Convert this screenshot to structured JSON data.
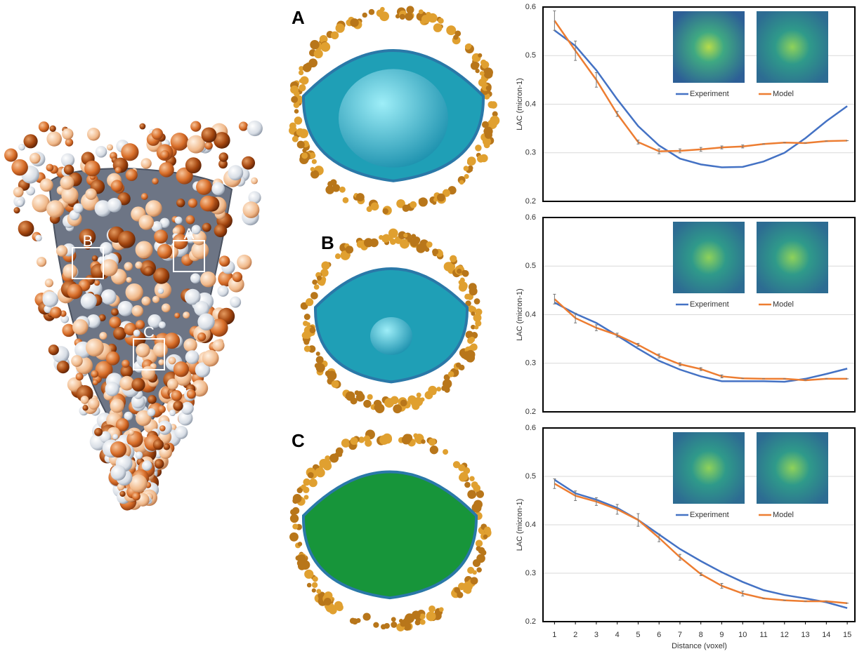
{
  "illustration": {
    "box_labels": [
      "B",
      "A",
      "C"
    ]
  },
  "panel_labels": [
    "A",
    "B",
    "C"
  ],
  "chart_data": [
    {
      "type": "line",
      "ylabel": "LAC (micron-1)",
      "x": [
        1,
        2,
        3,
        4,
        5,
        6,
        7,
        8,
        9,
        10,
        11,
        12,
        13,
        14,
        15
      ],
      "xlim": [
        0.45,
        15.4
      ],
      "ylim": [
        0.2,
        0.6
      ],
      "yticks": [
        0.2,
        0.3,
        0.4,
        0.5,
        0.6
      ],
      "grid": true,
      "series": [
        {
          "name": "Experiment",
          "color": "#4472c4",
          "values": [
            0.552,
            0.52,
            0.47,
            0.41,
            0.355,
            0.315,
            0.288,
            0.276,
            0.27,
            0.271,
            0.282,
            0.3,
            0.33,
            0.365,
            0.396
          ]
        },
        {
          "name": "Model",
          "color": "#ed7d31",
          "values": [
            0.572,
            0.51,
            0.45,
            0.38,
            0.322,
            0.303,
            0.304,
            0.307,
            0.311,
            0.313,
            0.318,
            0.321,
            0.32,
            0.324,
            0.325
          ],
          "errors": [
            0.02,
            0.02,
            0.015,
            0.005,
            0.004,
            0.005,
            0.004,
            0.004,
            0.003,
            0.003,
            0,
            0,
            0,
            0,
            0
          ]
        }
      ]
    },
    {
      "type": "line",
      "ylabel": "LAC (micron-1)",
      "x": [
        1,
        2,
        3,
        4,
        5,
        6,
        7,
        8,
        9,
        10,
        11,
        12,
        13,
        14,
        15
      ],
      "xlim": [
        0.45,
        15.4
      ],
      "ylim": [
        0.2,
        0.6
      ],
      "yticks": [
        0.2,
        0.3,
        0.4,
        0.5,
        0.6
      ],
      "grid": true,
      "series": [
        {
          "name": "Experiment",
          "color": "#4472c4",
          "values": [
            0.425,
            0.402,
            0.383,
            0.357,
            0.33,
            0.305,
            0.287,
            0.273,
            0.263,
            0.263,
            0.263,
            0.262,
            0.268,
            0.278,
            0.289
          ]
        },
        {
          "name": "Model",
          "color": "#ed7d31",
          "values": [
            0.432,
            0.393,
            0.373,
            0.358,
            0.338,
            0.315,
            0.298,
            0.288,
            0.273,
            0.269,
            0.268,
            0.268,
            0.265,
            0.268,
            0.268
          ],
          "errors": [
            0.01,
            0.01,
            0.006,
            0.004,
            0.003,
            0.004,
            0.003,
            0.003,
            0.003,
            0,
            0,
            0,
            0,
            0,
            0
          ]
        }
      ]
    },
    {
      "type": "line",
      "ylabel": "LAC (micron-1)",
      "xlabel": "Distance (voxel)",
      "x": [
        1,
        2,
        3,
        4,
        5,
        6,
        7,
        8,
        9,
        10,
        11,
        12,
        13,
        14,
        15
      ],
      "xlim": [
        0.45,
        15.4
      ],
      "xticks": [
        1,
        2,
        3,
        4,
        5,
        6,
        7,
        8,
        9,
        10,
        11,
        12,
        13,
        14,
        15
      ],
      "ylim": [
        0.2,
        0.6
      ],
      "yticks": [
        0.2,
        0.3,
        0.4,
        0.5,
        0.6
      ],
      "grid": true,
      "series": [
        {
          "name": "Experiment",
          "color": "#4472c4",
          "values": [
            0.493,
            0.465,
            0.452,
            0.435,
            0.41,
            0.38,
            0.35,
            0.325,
            0.302,
            0.282,
            0.265,
            0.255,
            0.248,
            0.24,
            0.228
          ]
        },
        {
          "name": "Model",
          "color": "#ed7d31",
          "values": [
            0.485,
            0.46,
            0.448,
            0.432,
            0.41,
            0.373,
            0.333,
            0.298,
            0.274,
            0.258,
            0.248,
            0.244,
            0.242,
            0.242,
            0.238
          ],
          "errors": [
            0.01,
            0.01,
            0.008,
            0.01,
            0.013,
            0.008,
            0.006,
            0.003,
            0.005,
            0.005,
            0,
            0,
            0,
            0,
            0
          ]
        }
      ]
    }
  ]
}
